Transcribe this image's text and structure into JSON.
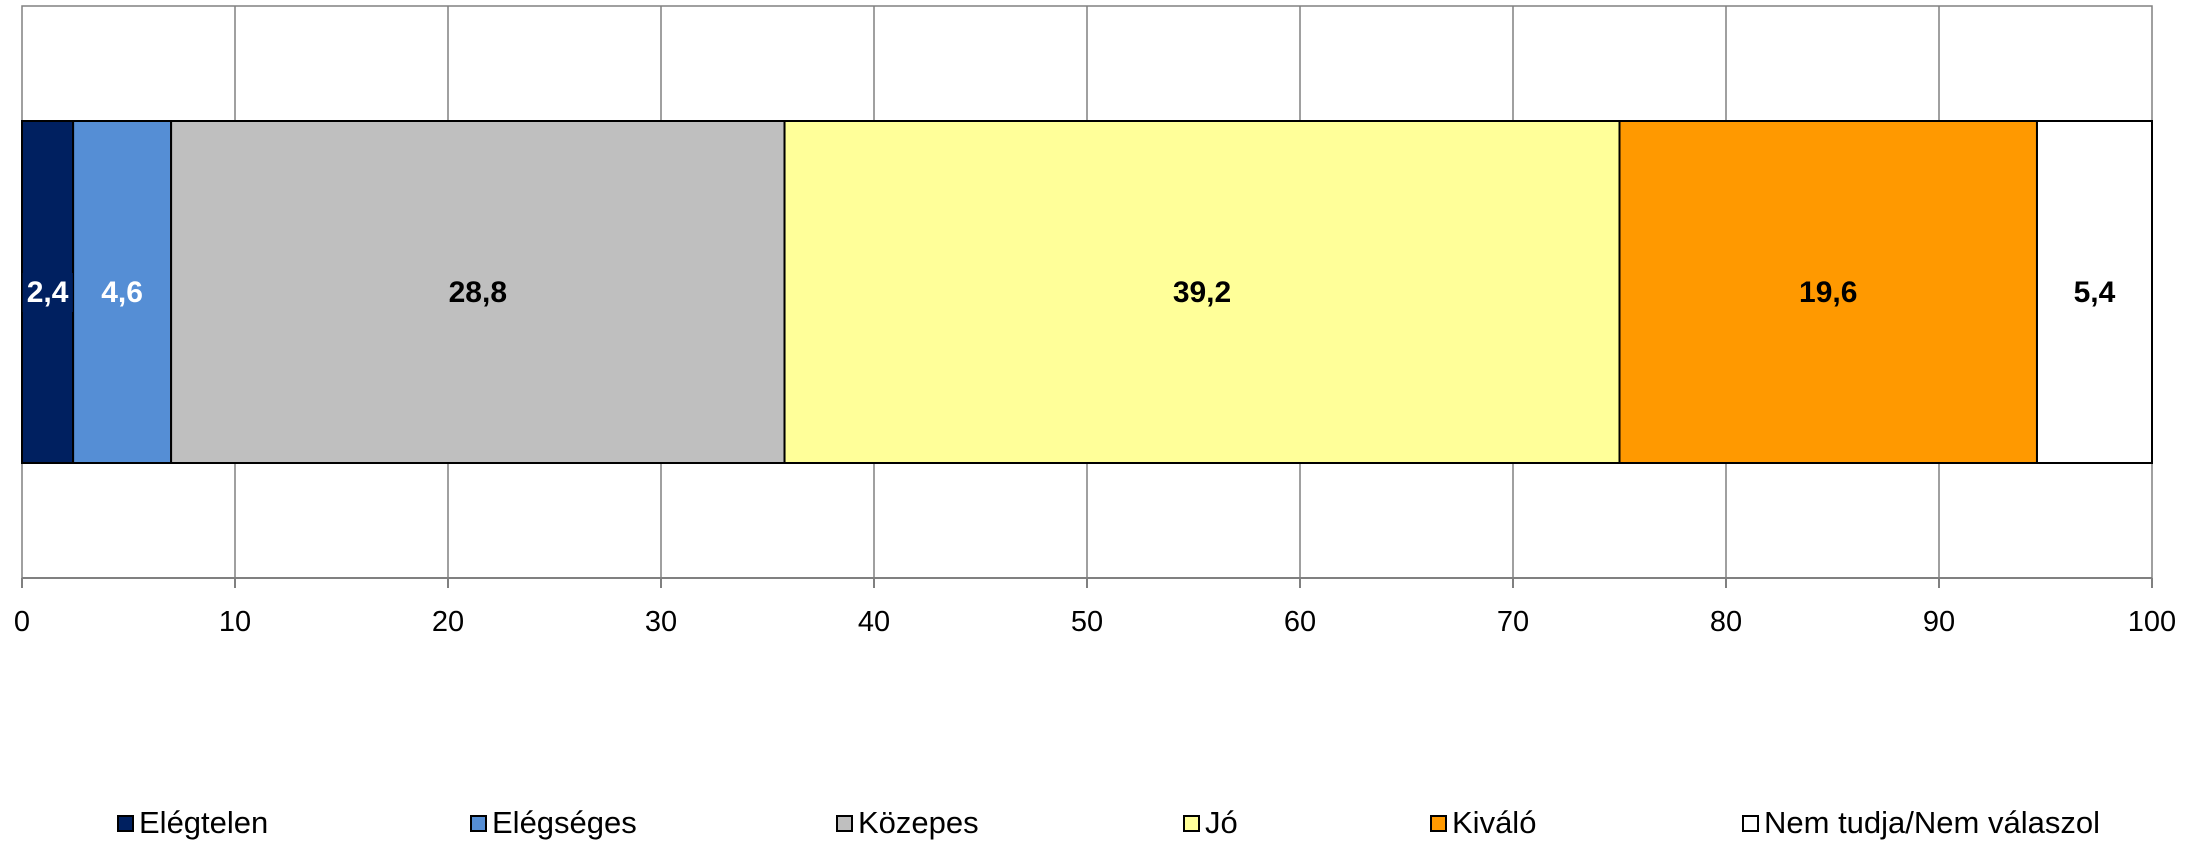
{
  "chart_data": {
    "type": "bar",
    "orientation": "horizontal",
    "stacked": true,
    "categories": [
      ""
    ],
    "series": [
      {
        "name": "Elégtelen",
        "values": [
          2.4
        ],
        "label": "2,4",
        "color": "#002060",
        "label_color": "#ffffff"
      },
      {
        "name": "Elégséges",
        "values": [
          4.6
        ],
        "label": "4,6",
        "color": "#558ED5",
        "label_color": "#ffffff"
      },
      {
        "name": "Közepes",
        "values": [
          28.8
        ],
        "label": "28,8",
        "color": "#BFBFBF",
        "label_color": "#000000"
      },
      {
        "name": "Jó",
        "values": [
          39.2
        ],
        "label": "39,2",
        "color": "#FFFF99",
        "label_color": "#000000"
      },
      {
        "name": "Kiváló",
        "values": [
          19.6
        ],
        "label": "19,6",
        "color": "#FF9900",
        "label_color": "#000000"
      },
      {
        "name": "Nem tudja/Nem válaszol",
        "values": [
          5.4
        ],
        "label": "5,4",
        "color": "#FFFFFF",
        "label_color": "#000000"
      }
    ],
    "xlim": [
      0,
      100
    ],
    "xticks": [
      0,
      10,
      20,
      30,
      40,
      50,
      60,
      70,
      80,
      90,
      100
    ],
    "xtick_labels": [
      "0",
      "10",
      "20",
      "30",
      "40",
      "50",
      "60",
      "70",
      "80",
      "90",
      "100"
    ],
    "title": "",
    "xlabel": "",
    "ylabel": "",
    "grid": true,
    "legend_position": "bottom"
  }
}
